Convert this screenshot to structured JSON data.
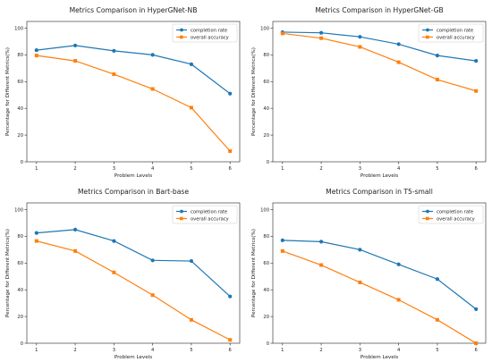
{
  "chart_data": [
    {
      "type": "line",
      "title": "Metrics Comparison in HyperGNet-NB",
      "xlabel": "Problem Levels",
      "ylabel": "Percentage for Different Metrics(%)",
      "x": [
        1,
        2,
        3,
        4,
        5,
        6
      ],
      "ylim": [
        0,
        100
      ],
      "yticks": [
        0,
        20,
        40,
        60,
        80,
        100
      ],
      "legend": "top-right",
      "grid": false,
      "series": [
        {
          "name": "completion rate",
          "color": "#1f77b4",
          "marker": "circle",
          "values": [
            83.5,
            87,
            83,
            80,
            73,
            51
          ]
        },
        {
          "name": "overall accuracy",
          "color": "#ff7f0e",
          "marker": "square",
          "values": [
            79.5,
            75.5,
            65.5,
            54.5,
            40.5,
            8
          ]
        }
      ]
    },
    {
      "type": "line",
      "title": "Metrics Comparison in HyperGNet-GB",
      "xlabel": "Problem Levels",
      "ylabel": "Percentage for Different Metrics(%)",
      "x": [
        1,
        2,
        3,
        4,
        5,
        6
      ],
      "ylim": [
        0,
        100
      ],
      "yticks": [
        0,
        20,
        40,
        60,
        80,
        100
      ],
      "legend": "top-right",
      "grid": false,
      "series": [
        {
          "name": "completion rate",
          "color": "#1f77b4",
          "marker": "circle",
          "values": [
            97,
            96.5,
            93.5,
            88,
            79.5,
            75.5
          ]
        },
        {
          "name": "overall accuracy",
          "color": "#ff7f0e",
          "marker": "square",
          "values": [
            96,
            92.5,
            86,
            74.5,
            61.5,
            53
          ]
        }
      ]
    },
    {
      "type": "line",
      "title": "Metrics Comparison in Bart-base",
      "xlabel": "Problem Levels",
      "ylabel": "Percentage for Different Metrics(%)",
      "x": [
        1,
        2,
        3,
        4,
        5,
        6
      ],
      "ylim": [
        0,
        100
      ],
      "yticks": [
        0,
        20,
        40,
        60,
        80,
        100
      ],
      "legend": "top-right",
      "grid": false,
      "series": [
        {
          "name": "completion rate",
          "color": "#1f77b4",
          "marker": "circle",
          "values": [
            82.5,
            85,
            76.5,
            62,
            61.5,
            35
          ]
        },
        {
          "name": "overall accuracy",
          "color": "#ff7f0e",
          "marker": "square",
          "values": [
            76.5,
            69,
            53,
            36,
            17.5,
            2.5
          ]
        }
      ]
    },
    {
      "type": "line",
      "title": "Metrics Comparison in T5-small",
      "xlabel": "Problem Levels",
      "ylabel": "Percentage for Different Metrics(%)",
      "x": [
        1,
        2,
        3,
        4,
        5,
        6
      ],
      "ylim": [
        0,
        100
      ],
      "yticks": [
        0,
        20,
        40,
        60,
        80,
        100
      ],
      "legend": "top-right",
      "grid": false,
      "series": [
        {
          "name": "completion rate",
          "color": "#1f77b4",
          "marker": "circle",
          "values": [
            77,
            76,
            70,
            59,
            48,
            25.5
          ]
        },
        {
          "name": "overall accuracy",
          "color": "#ff7f0e",
          "marker": "square",
          "values": [
            69,
            58.5,
            45.5,
            32.5,
            17.5,
            0
          ]
        }
      ]
    }
  ]
}
